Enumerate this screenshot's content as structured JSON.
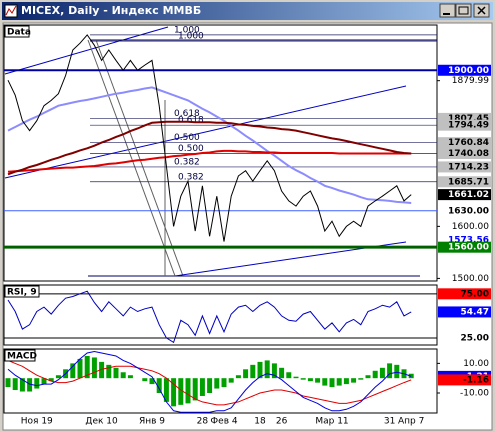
{
  "window": {
    "title": "MICEX, Daily - Индекс ММВБ"
  },
  "chart_data": [
    {
      "type": "line",
      "title": "Data",
      "categories": [
        null,
        null,
        null,
        null,
        "Ноя 19",
        null,
        null,
        null,
        null,
        null,
        null,
        null,
        null,
        "Дек 10",
        null,
        null,
        null,
        null,
        null,
        null,
        "Янв 9",
        null,
        null,
        null,
        null,
        null,
        null,
        "28",
        null,
        null,
        "Фев 4",
        null,
        null,
        null,
        null,
        "18",
        null,
        null,
        "26",
        null,
        null,
        null,
        null,
        null,
        null,
        "Мар 11",
        null,
        null,
        null,
        null,
        null,
        null,
        null,
        "31",
        null,
        null,
        "Апр 7"
      ],
      "series": [
        {
          "color": "#8c8cff",
          "width": 2,
          "values": [
            1784,
            1791,
            1798,
            1805,
            1811,
            1818,
            1825,
            1832,
            1835,
            1838,
            1841,
            1843,
            1846,
            1849,
            1852,
            1855,
            1857,
            1860,
            1862,
            1865,
            1867,
            1862,
            1857,
            1852,
            1847,
            1842,
            1834,
            1826,
            1819,
            1811,
            1803,
            1793,
            1784,
            1774,
            1765,
            1755,
            1745,
            1736,
            1726,
            1716,
            1708,
            1701,
            1693,
            1686,
            1678,
            1674,
            1669,
            1665,
            1661,
            1656,
            1652,
            1651,
            1650,
            1649,
            1647,
            1646,
            1645
          ]
        },
        {
          "color": "#e00000",
          "width": 2,
          "values": [
            1705,
            1706,
            1707,
            1708,
            1709,
            1710,
            1711,
            1712,
            1713,
            1713,
            1714,
            1715,
            1716,
            1718,
            1720,
            1721,
            1723,
            1725,
            1727,
            1728,
            1730,
            1732,
            1733,
            1735,
            1736,
            1738,
            1739,
            1741,
            1742,
            1744,
            1745,
            1745,
            1744,
            1744,
            1743,
            1743,
            1742,
            1742,
            1741,
            1741,
            1741,
            1741,
            1741,
            1741,
            1741,
            1741,
            1740,
            1740,
            1740,
            1740,
            1740,
            1740,
            1740,
            1740,
            1740,
            1740,
            1740
          ]
        },
        {
          "color": "#800000",
          "width": 2,
          "values": [
            1700,
            1705,
            1709,
            1714,
            1718,
            1723,
            1728,
            1732,
            1737,
            1741,
            1746,
            1750,
            1755,
            1761,
            1766,
            1772,
            1777,
            1783,
            1788,
            1794,
            1799,
            1800,
            1801,
            1801,
            1801,
            1801,
            1800,
            1800,
            1800,
            1799,
            1799,
            1798,
            1796,
            1795,
            1793,
            1792,
            1790,
            1789,
            1787,
            1786,
            1784,
            1781,
            1778,
            1775,
            1772,
            1769,
            1767,
            1764,
            1761,
            1758,
            1755,
            1752,
            1749,
            1746,
            1743,
            1741,
            1740
          ]
        },
        {
          "color": "#000000",
          "width": 1,
          "values": [
            1881,
            1852,
            1803,
            1784,
            1803,
            1832,
            1842,
            1855,
            1890,
            1939,
            1952,
            1968,
            1948,
            1919,
            1939,
            1919,
            1900,
            1919,
            1900,
            1910,
            1919,
            1832,
            1716,
            1600,
            1658,
            1687,
            1591,
            1678,
            1581,
            1658,
            1571,
            1658,
            1697,
            1707,
            1687,
            1707,
            1726,
            1707,
            1668,
            1649,
            1639,
            1658,
            1668,
            1639,
            1591,
            1610,
            1581,
            1600,
            1610,
            1600,
            1639,
            1649,
            1658,
            1668,
            1678,
            1649,
            1661
          ]
        }
      ],
      "ylim": [
        1495,
        1987
      ],
      "yticks": [
        {
          "value": 1879.99,
          "label": "1879.99"
        },
        {
          "value": 1600,
          "label": "1600.00"
        },
        {
          "value": 1500,
          "label": "1500.00"
        }
      ],
      "markers": [
        {
          "value": 1900,
          "label": "1900.00",
          "bg": "#0000ff",
          "fg": "#ffffff",
          "line": "#0000a0",
          "line_width": 2
        },
        {
          "value": 1807.45,
          "label": "1807.45",
          "bg": "#c0c0c0",
          "fg": "#000000"
        },
        {
          "value": 1794.49,
          "label": "1794.49",
          "bg": "#c0c0c0",
          "fg": "#000000"
        },
        {
          "value": 1760.84,
          "label": "1760.84",
          "bg": "#c0c0c0",
          "fg": "#000000"
        },
        {
          "value": 1740.08,
          "label": "1740.08",
          "bg": "#c0c0c0",
          "fg": "#000000"
        },
        {
          "value": 1714.23,
          "label": "1714.23",
          "bg": "#c0c0c0",
          "fg": "#000000"
        },
        {
          "value": 1685.71,
          "label": "1685.71",
          "bg": "#c0c0c0",
          "fg": "#000000"
        },
        {
          "value": 1661.02,
          "label": "1661.02",
          "bg": "#000000",
          "fg": "#ffffff"
        },
        {
          "value": 1630,
          "label": "1630.00",
          "bg": "#ffffff",
          "fg": "#000000",
          "line": "#4060ff",
          "line_width": 1
        },
        {
          "value": 1573.56,
          "label": "1573.56",
          "bg": "#ffffff",
          "fg": "#0000ff"
        },
        {
          "value": 1560,
          "label": "1560.00",
          "bg": "#008000",
          "fg": "#ffffff",
          "line": "#006000",
          "line_width": 3
        }
      ],
      "fibonacci": [
        {
          "levels": [
            {
              "value": 1968,
              "label": "1.000"
            },
            {
              "value": 1807.45,
              "label": "0.618"
            },
            {
              "value": 1760.84,
              "label": "0.500"
            },
            {
              "value": 1714.23,
              "label": "0.382"
            }
          ]
        },
        {
          "levels": [
            {
              "value": 1956,
              "label": "1.000"
            },
            {
              "value": 1794.49,
              "label": "0.618"
            },
            {
              "value": 1740.08,
              "label": "0.500"
            },
            {
              "value": 1685.71,
              "label": "0.382"
            }
          ]
        }
      ]
    },
    {
      "type": "line",
      "title": "RSI, 9",
      "series": [
        {
          "color": "#0000c0",
          "width": 1,
          "values": [
            68,
            55,
            35,
            40,
            55,
            60,
            52,
            62,
            70,
            72,
            75,
            78,
            65,
            55,
            66,
            58,
            50,
            60,
            55,
            58,
            60,
            40,
            25,
            20,
            45,
            40,
            28,
            50,
            30,
            50,
            32,
            52,
            60,
            62,
            55,
            62,
            66,
            60,
            50,
            45,
            44,
            52,
            55,
            45,
            35,
            42,
            32,
            42,
            46,
            40,
            55,
            58,
            62,
            60,
            66,
            50,
            54.47
          ]
        }
      ],
      "ylim": [
        17,
        85
      ],
      "yticks": [],
      "markers": [
        {
          "value": 75,
          "label": "75.00",
          "bg": "#ff0000",
          "fg": "#000000",
          "line": "#000000",
          "line_width": 1
        },
        {
          "value": 54.47,
          "label": "54.47",
          "bg": "#0000ff",
          "fg": "#ffffff"
        },
        {
          "value": 25,
          "label": "25.00",
          "bg": "#ffffff",
          "fg": "#000000",
          "line": "#000000",
          "line_width": 1
        }
      ]
    },
    {
      "type": "line",
      "title": "MACD",
      "series": [
        {
          "color": "#00a000",
          "style": "bar",
          "values": [
            -6,
            -8,
            -9,
            -9,
            -7,
            -4,
            -2,
            2,
            6,
            10,
            13,
            15,
            14,
            11,
            9,
            7,
            4,
            2,
            0,
            -2,
            -4,
            -10,
            -16,
            -19,
            -18,
            -17,
            -15,
            -12,
            -10,
            -7,
            -6,
            -3,
            2,
            6,
            9,
            11,
            12,
            10,
            7,
            4,
            1,
            -1,
            -2,
            -3,
            -5,
            -6,
            -5,
            -4,
            -3,
            -1,
            2,
            5,
            7,
            10,
            9,
            6,
            3
          ]
        },
        {
          "color": "#e00000",
          "width": 1,
          "values": [
            12,
            10,
            8,
            5,
            2,
            0,
            -2,
            -3,
            -3,
            -2,
            0,
            2,
            4,
            6,
            7,
            8,
            8,
            8,
            7,
            6,
            5,
            3,
            0,
            -4,
            -8,
            -11,
            -14,
            -16,
            -17,
            -18,
            -18,
            -17,
            -16,
            -14,
            -12,
            -10,
            -9,
            -8,
            -8,
            -9,
            -10,
            -12,
            -13,
            -14,
            -15,
            -16,
            -17,
            -17,
            -16,
            -15,
            -13,
            -11,
            -9,
            -7,
            -5,
            -3,
            -1.16
          ]
        },
        {
          "color": "#0000e0",
          "width": 1,
          "values": [
            6,
            2,
            -1,
            -4,
            -5,
            -4,
            -4,
            -1,
            3,
            8,
            13,
            17,
            18,
            17,
            16,
            15,
            12,
            10,
            7,
            4,
            1,
            -7,
            -16,
            -22,
            -23,
            -23,
            -23,
            -23,
            -23,
            -22,
            -22,
            -20,
            -14,
            -8,
            -3,
            1,
            3,
            2,
            -1,
            -5,
            -9,
            -13,
            -15,
            -17,
            -20,
            -22,
            -22,
            -21,
            -19,
            -16,
            -11,
            -6,
            -2,
            3,
            4,
            3,
            1.21
          ]
        }
      ],
      "ylim": [
        -23.5,
        19.7
      ],
      "yticks": [
        {
          "value": 10,
          "label": "10.00"
        },
        {
          "value": -10,
          "label": "-10.00"
        }
      ],
      "markers": [
        {
          "value": 1.21,
          "label": "1.21",
          "bg": "#0000ff",
          "fg": "#ffffff"
        },
        {
          "value": -1.16,
          "label": "-1.16",
          "bg": "#ff0000",
          "fg": "#000000"
        }
      ]
    }
  ]
}
